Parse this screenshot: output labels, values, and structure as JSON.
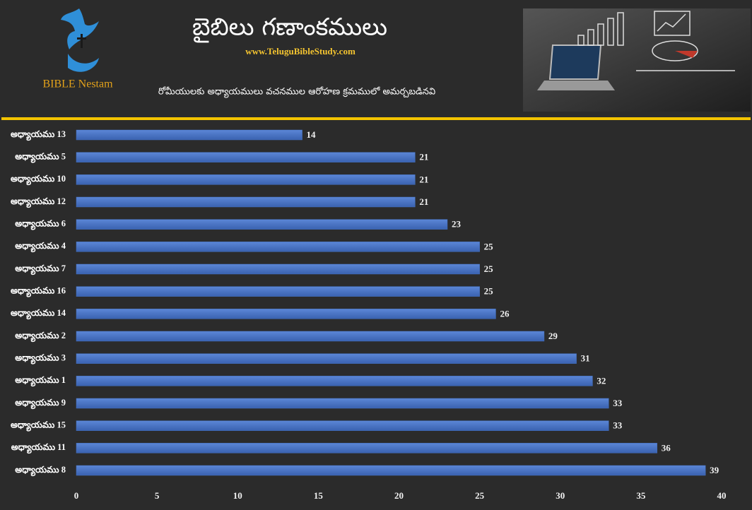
{
  "header": {
    "logo_text": "BIBLE Nestam",
    "website": "www.TeluguBibleStudy.com"
  },
  "chart_data": {
    "type": "bar",
    "orientation": "horizontal",
    "title": "బైబిలు గణాంకములు",
    "subtitle": "రోమీయులకు అధ్యాయములు వచనముల ఆరోహణ క్రమములో అమర్చబడినవి",
    "categories": [
      "అధ్యాయము 13",
      "అధ్యాయము 5",
      "అధ్యాయము 10",
      "అధ్యాయము 12",
      "అధ్యాయము 6",
      "అధ్యాయము 4",
      "అధ్యాయము 7",
      "అధ్యాయము 16",
      "అధ్యాయము 14",
      "అధ్యాయము 2",
      "అధ్యాయము 3",
      "అధ్యాయము 1",
      "అధ్యాయము 9",
      "అధ్యాయము 15",
      "అధ్యాయము 11",
      "అధ్యాయము 8"
    ],
    "values": [
      14,
      21,
      21,
      21,
      23,
      25,
      25,
      25,
      26,
      29,
      31,
      32,
      33,
      33,
      36,
      39
    ],
    "color": "#4472c4",
    "xlim": [
      0,
      40
    ],
    "xticks": [
      0,
      5,
      10,
      15,
      20,
      25,
      30,
      35,
      40
    ],
    "grid": false
  }
}
